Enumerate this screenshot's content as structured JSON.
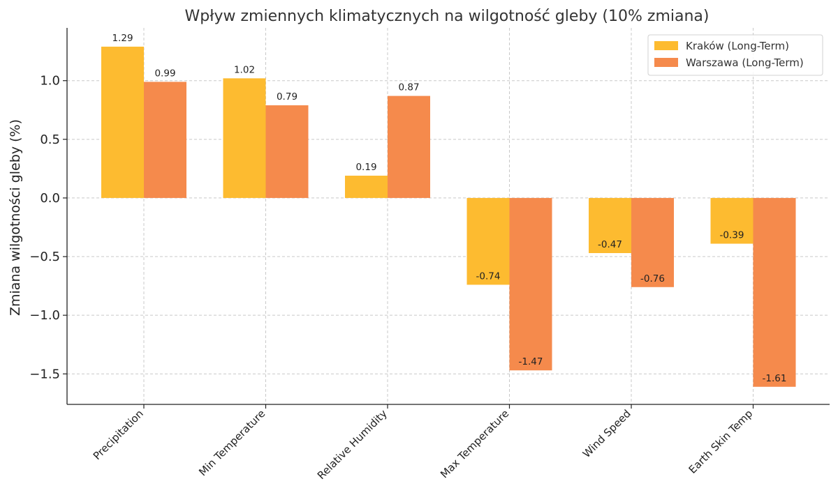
{
  "chart_data": {
    "type": "bar",
    "title": "Wpływ zmiennych klimatycznych na wilgotność gleby (10% zmiana)",
    "xlabel": "",
    "ylabel": "Zmiana wilgotności gleby (%)",
    "ylim": [
      -1.76,
      1.45
    ],
    "yticks": [
      -1.5,
      -1.0,
      -0.5,
      0.0,
      0.5,
      1.0
    ],
    "ytick_labels": [
      "−1.5",
      "−1.0",
      "−0.5",
      "0.0",
      "0.5",
      "1.0"
    ],
    "categories": [
      "Precipitation",
      "Min Temperature",
      "Relative Humidity",
      "Max Temperature",
      "Wind Speed",
      "Earth Skin Temp"
    ],
    "series": [
      {
        "name": "Kraków (Long-Term)",
        "color": "#FDBB30",
        "values": [
          1.29,
          1.02,
          0.19,
          -0.74,
          -0.47,
          -0.39
        ],
        "labels": [
          "1.29",
          "1.02",
          "0.19",
          "-0.74",
          "-0.47",
          "-0.39"
        ]
      },
      {
        "name": "Warszawa (Long-Term)",
        "color": "#F58A4C",
        "values": [
          0.99,
          0.79,
          0.87,
          -1.47,
          -0.76,
          -1.61
        ],
        "labels": [
          "0.99",
          "0.79",
          "0.87",
          "-1.47",
          "-0.76",
          "-1.61"
        ]
      }
    ],
    "grid": true,
    "legend_position": "top-right"
  }
}
